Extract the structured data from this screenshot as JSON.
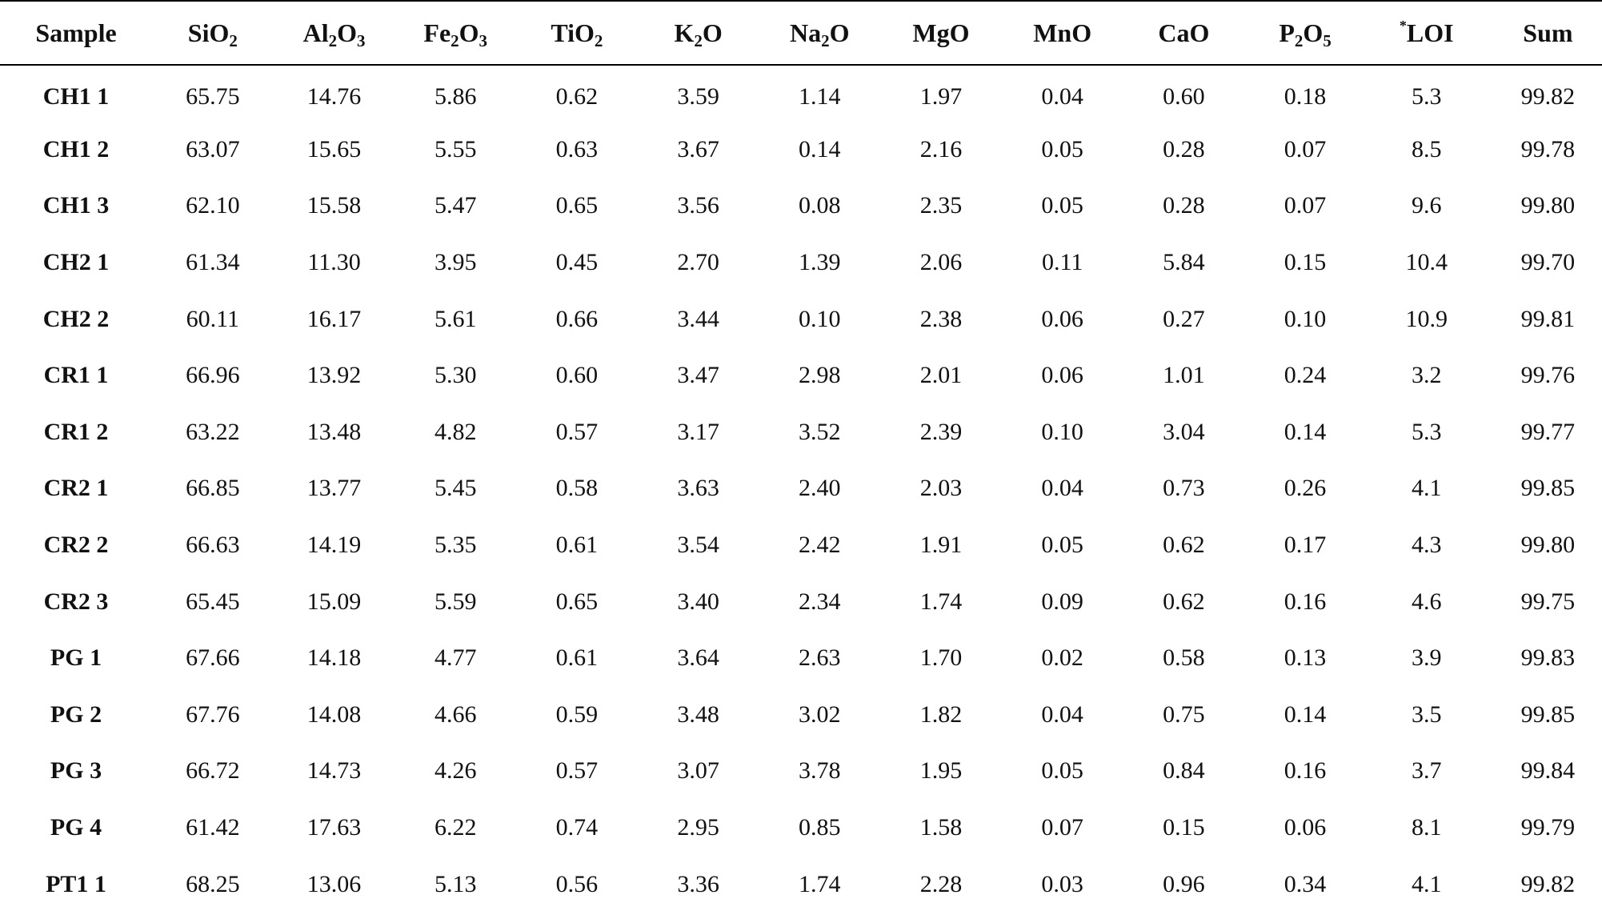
{
  "table": {
    "headers": [
      {
        "base": "Sample",
        "sub": "",
        "sup": "",
        "rest": ""
      },
      {
        "base": "SiO",
        "sub": "2",
        "sup": "",
        "rest": ""
      },
      {
        "base": "Al",
        "sub": "2",
        "sup": "",
        "rest": "O",
        "sub2": "3"
      },
      {
        "base": "Fe",
        "sub": "2",
        "sup": "",
        "rest": "O",
        "sub2": "3"
      },
      {
        "base": "TiO",
        "sub": "2",
        "sup": "",
        "rest": ""
      },
      {
        "base": "K",
        "sub": "2",
        "sup": "",
        "rest": "O"
      },
      {
        "base": "Na",
        "sub": "2",
        "sup": "",
        "rest": "O"
      },
      {
        "base": "MgO",
        "sub": "",
        "sup": "",
        "rest": ""
      },
      {
        "base": "MnO",
        "sub": "",
        "sup": "",
        "rest": ""
      },
      {
        "base": "CaO",
        "sub": "",
        "sup": "",
        "rest": ""
      },
      {
        "base": "P",
        "sub": "2",
        "sup": "",
        "rest": "O",
        "sub2": "5"
      },
      {
        "base": "LOI",
        "sub": "",
        "sup": "*",
        "rest": ""
      },
      {
        "base": "Sum",
        "sub": "",
        "sup": "",
        "rest": ""
      }
    ],
    "rows": [
      [
        "CH1 1",
        "65.75",
        "14.76",
        "5.86",
        "0.62",
        "3.59",
        "1.14",
        "1.97",
        "0.04",
        "0.60",
        "0.18",
        "5.3",
        "99.82"
      ],
      [
        "CH1 2",
        "63.07",
        "15.65",
        "5.55",
        "0.63",
        "3.67",
        "0.14",
        "2.16",
        "0.05",
        "0.28",
        "0.07",
        "8.5",
        "99.78"
      ],
      [
        "CH1 3",
        "62.10",
        "15.58",
        "5.47",
        "0.65",
        "3.56",
        "0.08",
        "2.35",
        "0.05",
        "0.28",
        "0.07",
        "9.6",
        "99.80"
      ],
      [
        "CH2 1",
        "61.34",
        "11.30",
        "3.95",
        "0.45",
        "2.70",
        "1.39",
        "2.06",
        "0.11",
        "5.84",
        "0.15",
        "10.4",
        "99.70"
      ],
      [
        "CH2 2",
        "60.11",
        "16.17",
        "5.61",
        "0.66",
        "3.44",
        "0.10",
        "2.38",
        "0.06",
        "0.27",
        "0.10",
        "10.9",
        "99.81"
      ],
      [
        "CR1 1",
        "66.96",
        "13.92",
        "5.30",
        "0.60",
        "3.47",
        "2.98",
        "2.01",
        "0.06",
        "1.01",
        "0.24",
        "3.2",
        "99.76"
      ],
      [
        "CR1 2",
        "63.22",
        "13.48",
        "4.82",
        "0.57",
        "3.17",
        "3.52",
        "2.39",
        "0.10",
        "3.04",
        "0.14",
        "5.3",
        "99.77"
      ],
      [
        "CR2 1",
        "66.85",
        "13.77",
        "5.45",
        "0.58",
        "3.63",
        "2.40",
        "2.03",
        "0.04",
        "0.73",
        "0.26",
        "4.1",
        "99.85"
      ],
      [
        "CR2 2",
        "66.63",
        "14.19",
        "5.35",
        "0.61",
        "3.54",
        "2.42",
        "1.91",
        "0.05",
        "0.62",
        "0.17",
        "4.3",
        "99.80"
      ],
      [
        "CR2 3",
        "65.45",
        "15.09",
        "5.59",
        "0.65",
        "3.40",
        "2.34",
        "1.74",
        "0.09",
        "0.62",
        "0.16",
        "4.6",
        "99.75"
      ],
      [
        "PG 1",
        "67.66",
        "14.18",
        "4.77",
        "0.61",
        "3.64",
        "2.63",
        "1.70",
        "0.02",
        "0.58",
        "0.13",
        "3.9",
        "99.83"
      ],
      [
        "PG 2",
        "67.76",
        "14.08",
        "4.66",
        "0.59",
        "3.48",
        "3.02",
        "1.82",
        "0.04",
        "0.75",
        "0.14",
        "3.5",
        "99.85"
      ],
      [
        "PG 3",
        "66.72",
        "14.73",
        "4.26",
        "0.57",
        "3.07",
        "3.78",
        "1.95",
        "0.05",
        "0.84",
        "0.16",
        "3.7",
        "99.84"
      ],
      [
        "PG 4",
        "61.42",
        "17.63",
        "6.22",
        "0.74",
        "2.95",
        "0.85",
        "1.58",
        "0.07",
        "0.15",
        "0.06",
        "8.1",
        "99.79"
      ],
      [
        "PT1 1",
        "68.25",
        "13.06",
        "5.13",
        "0.56",
        "3.36",
        "1.74",
        "2.28",
        "0.03",
        "0.96",
        "0.34",
        "4.1",
        "99.82"
      ]
    ]
  }
}
